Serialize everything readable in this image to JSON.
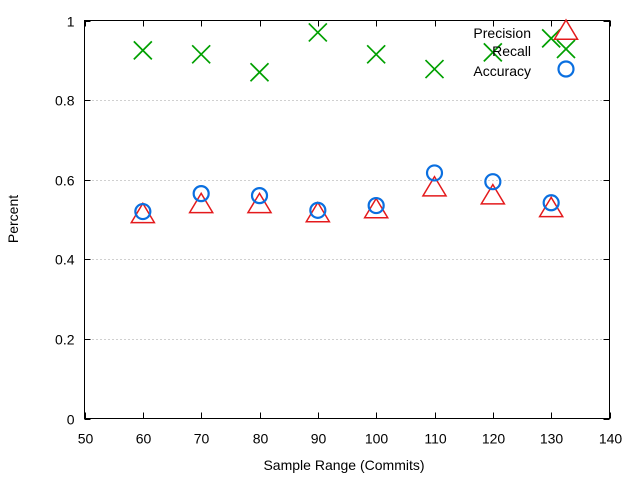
{
  "chart_data": {
    "type": "scatter",
    "title": "",
    "xlabel": "Sample Range (Commits)",
    "ylabel": "Percent",
    "xlim": [
      50,
      140
    ],
    "ylim": [
      0,
      1
    ],
    "x_ticks": [
      "50",
      "60",
      "70",
      "80",
      "90",
      "100",
      "110",
      "120",
      "130",
      "140"
    ],
    "y_ticks": [
      "0",
      "0.2",
      "0.4",
      "0.6",
      "0.8",
      "1"
    ],
    "grid": "horizontal dotted",
    "legend_position": "top-right",
    "x": [
      60,
      70,
      80,
      90,
      100,
      110,
      120,
      130
    ],
    "series": [
      {
        "name": "Precision",
        "marker": "triangle",
        "color": "#e41a1c",
        "values": [
          0.513,
          0.538,
          0.538,
          0.515,
          0.525,
          0.58,
          0.56,
          0.528
        ]
      },
      {
        "name": "Recall",
        "marker": "x",
        "color": "#00a000",
        "values": [
          0.925,
          0.915,
          0.87,
          0.97,
          0.915,
          0.878,
          0.92,
          0.955
        ]
      },
      {
        "name": "Accuracy",
        "marker": "circle",
        "color": "#0a6fe0",
        "values": [
          0.52,
          0.565,
          0.56,
          0.523,
          0.535,
          0.617,
          0.595,
          0.542
        ]
      }
    ]
  }
}
